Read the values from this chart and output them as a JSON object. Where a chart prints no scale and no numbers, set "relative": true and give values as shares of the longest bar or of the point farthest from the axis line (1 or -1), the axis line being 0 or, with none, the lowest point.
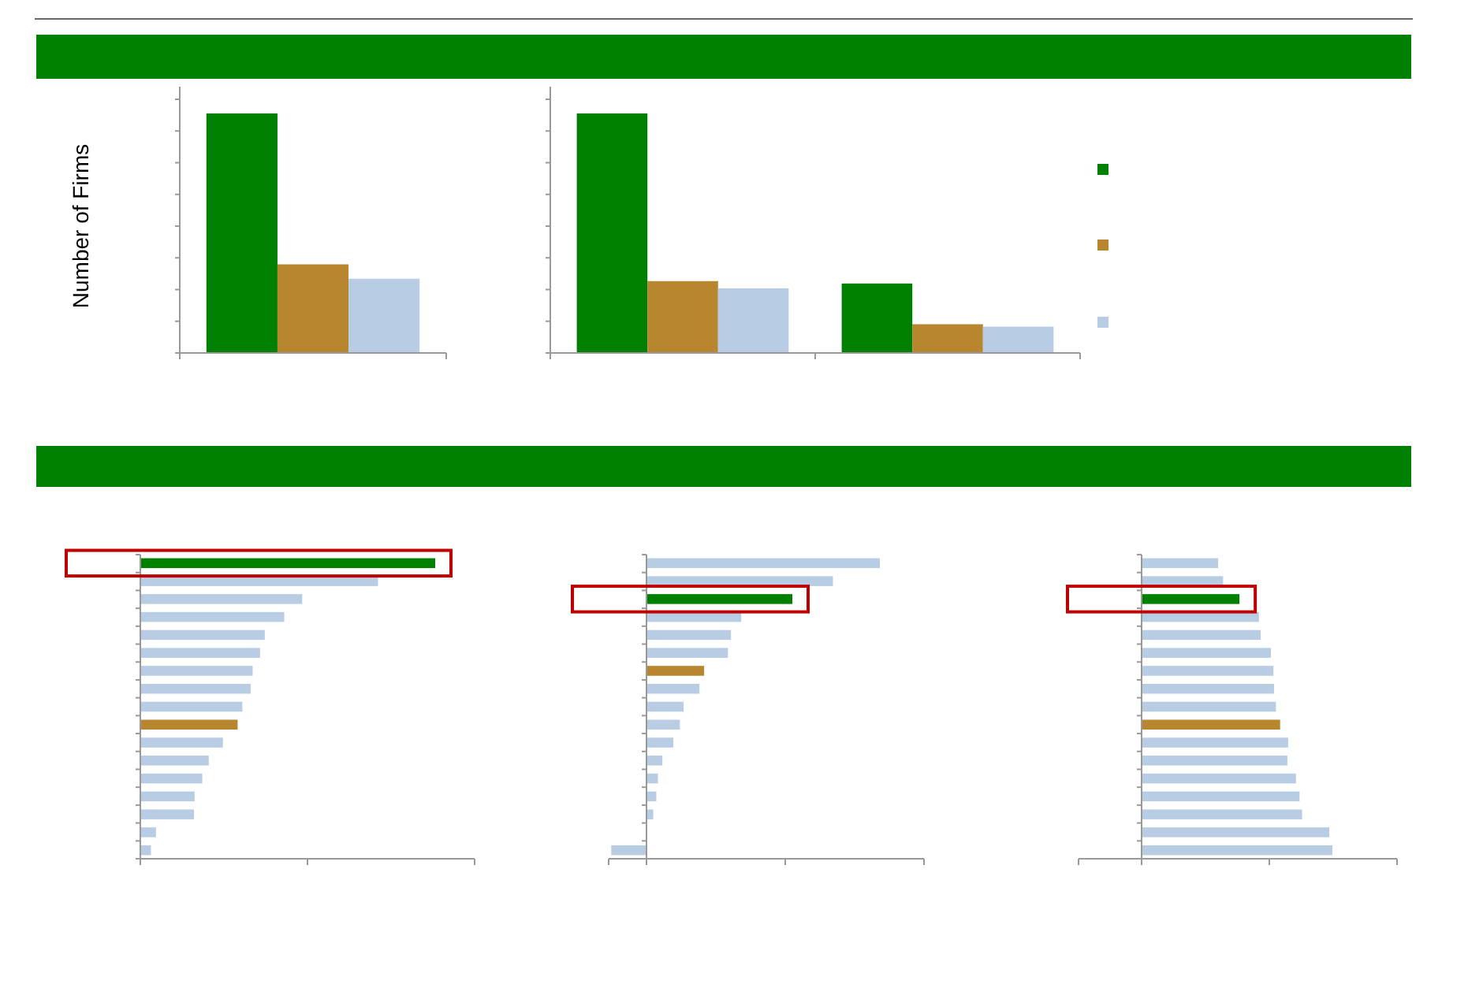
{
  "chart_data": [
    {
      "type": "bar",
      "relative": true,
      "ylabel": "Number of Firms",
      "categories": [
        null
      ],
      "series": [
        {
          "color": "#008000",
          "values": [
            1
          ]
        },
        {
          "color": "#b8862f",
          "values": [
            0.37
          ]
        },
        {
          "color": "#b8cce4",
          "values": [
            0.31
          ]
        }
      ]
    },
    {
      "type": "bar",
      "relative": true,
      "categories": [
        null,
        null
      ],
      "series": [
        {
          "color": "#008000",
          "values": [
            1,
            0.29
          ]
        },
        {
          "color": "#b8862f",
          "values": [
            0.3,
            0.12
          ]
        },
        {
          "color": "#b8cce4",
          "values": [
            0.27,
            0.11
          ]
        }
      ]
    },
    {
      "type": "bar",
      "relative": true,
      "orientation": "horizontal",
      "categories": [
        null,
        null,
        null,
        null,
        null,
        null,
        null,
        null,
        null,
        null,
        null,
        null,
        null,
        null,
        null,
        null,
        null
      ],
      "values": [
        1,
        0.806,
        0.549,
        0.488,
        0.422,
        0.406,
        0.381,
        0.374,
        0.346,
        0.33,
        0.28,
        0.232,
        0.21,
        0.184,
        0.182,
        0.053,
        0.036
      ],
      "colors": [
        "#008000",
        "#b8cce4",
        "#b8cce4",
        "#b8cce4",
        "#b8cce4",
        "#b8cce4",
        "#b8cce4",
        "#b8cce4",
        "#b8cce4",
        "#b8862f",
        "#b8cce4",
        "#b8cce4",
        "#b8cce4",
        "#b8cce4",
        "#b8cce4",
        "#b8cce4",
        "#b8cce4"
      ]
    },
    {
      "type": "bar",
      "relative": true,
      "orientation": "horizontal",
      "categories": [
        null,
        null,
        null,
        null,
        null,
        null,
        null,
        null,
        null,
        null,
        null,
        null,
        null,
        null,
        null,
        null,
        null
      ],
      "values": [
        1,
        0.799,
        0.625,
        0.406,
        0.362,
        0.349,
        0.247,
        0.227,
        0.159,
        0.143,
        0.115,
        0.068,
        0.049,
        0.042,
        0.029,
        null,
        -0.151
      ],
      "colors": [
        "#b8cce4",
        "#b8cce4",
        "#008000",
        "#b8cce4",
        "#b8cce4",
        "#b8cce4",
        "#b8862f",
        "#b8cce4",
        "#b8cce4",
        "#b8cce4",
        "#b8cce4",
        "#b8cce4",
        "#b8cce4",
        "#b8cce4",
        "#b8cce4",
        "#b8cce4",
        "#b8cce4"
      ]
    },
    {
      "type": "bar",
      "relative": true,
      "orientation": "horizontal",
      "categories": [
        null,
        null,
        null,
        null,
        null,
        null,
        null,
        null,
        null,
        null,
        null,
        null,
        null,
        null,
        null,
        null,
        null
      ],
      "values": [
        0.401,
        0.427,
        0.513,
        0.615,
        0.624,
        0.678,
        0.691,
        0.694,
        0.704,
        0.726,
        0.768,
        0.764,
        0.809,
        0.828,
        0.841,
        0.984,
        1
      ],
      "colors": [
        "#b8cce4",
        "#b8cce4",
        "#008000",
        "#b8cce4",
        "#b8cce4",
        "#b8cce4",
        "#b8cce4",
        "#b8cce4",
        "#b8cce4",
        "#b8862f",
        "#b8cce4",
        "#b8cce4",
        "#b8cce4",
        "#b8cce4",
        "#b8cce4",
        "#b8cce4",
        "#b8cce4"
      ]
    }
  ]
}
